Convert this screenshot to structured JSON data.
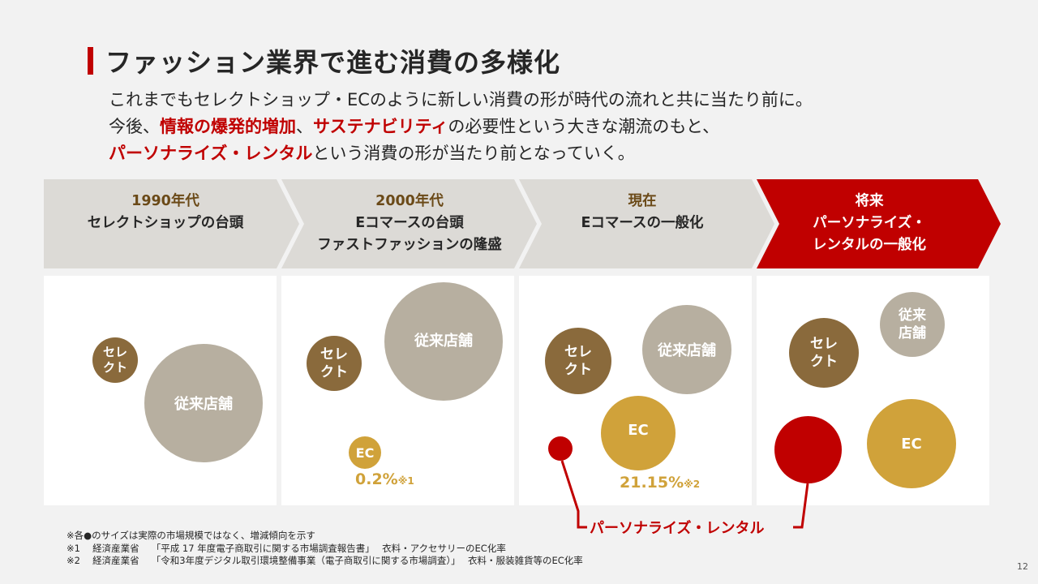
{
  "title": "ファッション業界で進む消費の多様化",
  "lead": {
    "line1": "これまでもセレクトショップ・ECのように新しい消費の形が時代の流れと共に当たり前に。",
    "line2_a": "今後、",
    "line2_red1": "情報の爆発的増加",
    "line2_b": "、",
    "line2_red2": "サステナビリティ",
    "line2_c": "の必要性という大きな潮流のもと、",
    "line3_red": "パーソナライズ・レンタル",
    "line3_b": "という消費の形が当たり前となっていく。"
  },
  "eras": [
    {
      "year": "1990年代",
      "lines": [
        "セレクトショップの台頭"
      ]
    },
    {
      "year": "2000年代",
      "lines": [
        "Eコマースの台頭",
        "ファストファッションの隆盛"
      ]
    },
    {
      "year": "現在",
      "lines": [
        "Eコマースの一般化"
      ]
    },
    {
      "year": "将来",
      "lines": [
        "パーソナライズ・",
        "レンタルの一般化"
      ]
    }
  ],
  "circles": {
    "select": "セレ\nクト",
    "traditional": "従来店舗",
    "traditional_future": "従来\n店舗",
    "ec": "EC"
  },
  "share": {
    "era2": {
      "value": "0.2%",
      "note": "※1"
    },
    "era3": {
      "value": "21.15%",
      "note": "※2"
    }
  },
  "callout": "パーソナライズ・レンタル",
  "notes": [
    "※各●のサイズは実際の市場規模ではなく、増減傾向を示す",
    "※1　 経済産業省　 「平成 17 年度電子商取引に関する市場調査報告書」　 衣料・アクセサリーのEC化率",
    "※2　 経済産業省　 「令和3年度デジタル取引環境整備事業（電子商取引に関する市場調査）」　 衣料・服装雑貨等のEC化率"
  ],
  "page_number": "12",
  "colors": {
    "accent_red": "#c00000",
    "brown": "#8a6a3c",
    "gray": "#b7afa0",
    "gold": "#d0a23a",
    "chevron_gray": "#dcdad6"
  }
}
